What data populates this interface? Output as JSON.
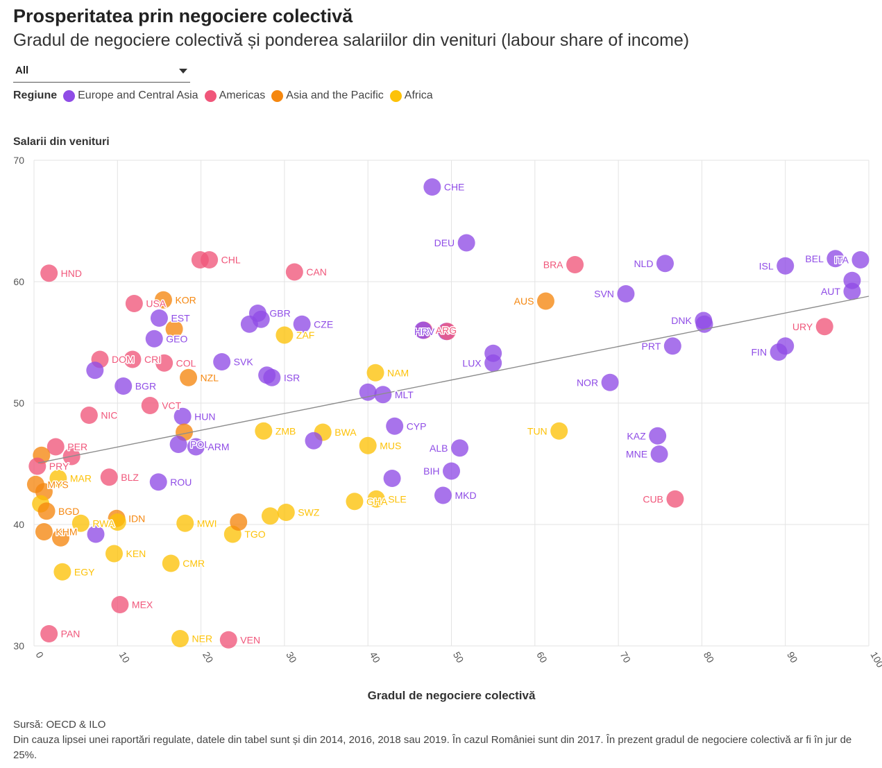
{
  "header": {
    "title": "Prosperitatea prin negociere colectivă",
    "subtitle": "Gradul de negociere colectivă și ponderea salariilor din venituri (labour share of income)"
  },
  "filter": {
    "selected": "All"
  },
  "legend": {
    "title": "Regiune",
    "items": [
      {
        "label": "Europe and Central Asia",
        "color": "#8f4ce6"
      },
      {
        "label": "Americas",
        "color": "#f0567a"
      },
      {
        "label": "Asia and the Pacific",
        "color": "#f5870f"
      },
      {
        "label": "Africa",
        "color": "#fdc208"
      }
    ]
  },
  "footer": {
    "source": "Sursă: OECD & ILO",
    "note": "Din cauza lipsei unei raportări regulate, datele din tabel sunt și din 2014, 2016, 2018 sau 2019. În cazul României sunt din 2017. În prezent gradul de negociere colectivă ar fi în jur de 25%."
  },
  "chart_data": {
    "type": "scatter",
    "title": "",
    "xlabel": "Gradul de negociere colectivă",
    "ylabel": "Salarii din venituri",
    "xlim": [
      0,
      100
    ],
    "ylim": [
      30,
      70
    ],
    "xticks": [
      0,
      10,
      20,
      30,
      40,
      50,
      60,
      70,
      80,
      90,
      100
    ],
    "yticks": [
      30,
      40,
      50,
      60,
      70
    ],
    "grid": true,
    "trendline": {
      "x": [
        0,
        100
      ],
      "y": [
        45,
        58.8
      ]
    },
    "regions": {
      "Europe and Central Asia": "#8f4ce6",
      "Americas": "#f0567a",
      "Asia and the Pacific": "#f5870f",
      "Africa": "#fdc208"
    },
    "points": [
      {
        "label": "CHE",
        "x": 47.7,
        "y": 67.8,
        "region": "Europe and Central Asia"
      },
      {
        "label": "DEU",
        "x": 51.8,
        "y": 63.2,
        "region": "Europe and Central Asia",
        "labelSide": "left"
      },
      {
        "label": "BRA",
        "x": 64.8,
        "y": 61.4,
        "region": "Americas",
        "labelSide": "left"
      },
      {
        "label": "NLD",
        "x": 75.6,
        "y": 61.5,
        "region": "Europe and Central Asia",
        "labelSide": "left"
      },
      {
        "label": "ISL",
        "x": 90.0,
        "y": 61.3,
        "region": "Europe and Central Asia",
        "labelSide": "left"
      },
      {
        "label": "BEL",
        "x": 96.0,
        "y": 61.9,
        "region": "Europe and Central Asia",
        "labelSide": "left"
      },
      {
        "label": "ITA",
        "x": 99.0,
        "y": 61.8,
        "region": "Europe and Central Asia",
        "labelSide": "left"
      },
      {
        "label": "",
        "x": 98.0,
        "y": 60.1,
        "region": "Europe and Central Asia"
      },
      {
        "label": "AUT",
        "x": 98.0,
        "y": 59.2,
        "region": "Europe and Central Asia",
        "labelSide": "left"
      },
      {
        "label": "AUS",
        "x": 61.3,
        "y": 58.4,
        "region": "Asia and the Pacific",
        "labelSide": "left"
      },
      {
        "label": "SVN",
        "x": 70.9,
        "y": 59.0,
        "region": "Europe and Central Asia",
        "labelSide": "left"
      },
      {
        "label": "DNK",
        "x": 80.2,
        "y": 56.8,
        "region": "Europe and Central Asia",
        "labelSide": "left"
      },
      {
        "label": "",
        "x": 80.3,
        "y": 56.5,
        "region": "Europe and Central Asia"
      },
      {
        "label": "URY",
        "x": 94.7,
        "y": 56.3,
        "region": "Americas",
        "labelSide": "left"
      },
      {
        "label": "PRT",
        "x": 76.5,
        "y": 54.7,
        "region": "Europe and Central Asia",
        "labelSide": "left"
      },
      {
        "label": "FIN",
        "x": 89.2,
        "y": 54.2,
        "region": "Europe and Central Asia",
        "labelSide": "left"
      },
      {
        "label": "",
        "x": 90.0,
        "y": 54.7,
        "region": "Europe and Central Asia"
      },
      {
        "label": "NOR",
        "x": 69.0,
        "y": 51.7,
        "region": "Europe and Central Asia",
        "labelSide": "left"
      },
      {
        "label": "KAZ",
        "x": 74.7,
        "y": 47.3,
        "region": "Europe and Central Asia",
        "labelSide": "left"
      },
      {
        "label": "MNE",
        "x": 74.9,
        "y": 45.8,
        "region": "Europe and Central Asia",
        "labelSide": "left"
      },
      {
        "label": "CUB",
        "x": 76.8,
        "y": 42.1,
        "region": "Americas",
        "labelSide": "left"
      },
      {
        "label": "TUN",
        "x": 62.9,
        "y": 47.7,
        "region": "Africa",
        "labelSide": "left"
      },
      {
        "label": "ARG",
        "x": 46.7,
        "y": 56.0,
        "region": "Americas"
      },
      {
        "label": "HRV",
        "x": 49.4,
        "y": 55.9,
        "region": "Europe and Central Asia",
        "labelSide": "left"
      },
      {
        "label": "",
        "x": 46.6,
        "y": 56.0,
        "region": "Europe and Central Asia"
      },
      {
        "label": "",
        "x": 49.5,
        "y": 55.9,
        "region": "Americas"
      },
      {
        "label": "LUX",
        "x": 55.0,
        "y": 53.3,
        "region": "Europe and Central Asia",
        "labelSide": "left"
      },
      {
        "label": "",
        "x": 55.0,
        "y": 54.1,
        "region": "Europe and Central Asia"
      },
      {
        "label": "NAM",
        "x": 40.9,
        "y": 52.5,
        "region": "Africa"
      },
      {
        "label": "",
        "x": 40.0,
        "y": 50.9,
        "region": "Europe and Central Asia"
      },
      {
        "label": "MLT",
        "x": 41.8,
        "y": 50.7,
        "region": "Europe and Central Asia"
      },
      {
        "label": "CYP",
        "x": 43.2,
        "y": 48.1,
        "region": "Europe and Central Asia"
      },
      {
        "label": "ALB",
        "x": 51.0,
        "y": 46.3,
        "region": "Europe and Central Asia",
        "labelSide": "left"
      },
      {
        "label": "BIH",
        "x": 50.0,
        "y": 44.4,
        "region": "Europe and Central Asia",
        "labelSide": "left"
      },
      {
        "label": "MKD",
        "x": 49.0,
        "y": 42.4,
        "region": "Europe and Central Asia"
      },
      {
        "label": "MUS",
        "x": 40.0,
        "y": 46.5,
        "region": "Africa"
      },
      {
        "label": "",
        "x": 42.9,
        "y": 43.8,
        "region": "Europe and Central Asia"
      },
      {
        "label": "GHA",
        "x": 38.4,
        "y": 41.9,
        "region": "Africa"
      },
      {
        "label": "SLE",
        "x": 41.0,
        "y": 42.1,
        "region": "Africa"
      },
      {
        "label": "CAN",
        "x": 31.2,
        "y": 60.8,
        "region": "Americas"
      },
      {
        "label": "CHL",
        "x": 21.0,
        "y": 61.8,
        "region": "Americas"
      },
      {
        "label": "",
        "x": 19.9,
        "y": 61.8,
        "region": "Americas"
      },
      {
        "label": "HND",
        "x": 1.8,
        "y": 60.7,
        "region": "Americas"
      },
      {
        "label": "USA",
        "x": 12.0,
        "y": 58.2,
        "region": "Americas"
      },
      {
        "label": "KOR",
        "x": 15.5,
        "y": 58.5,
        "region": "Asia and the Pacific"
      },
      {
        "label": "EST",
        "x": 15.0,
        "y": 57.0,
        "region": "Europe and Central Asia"
      },
      {
        "label": "",
        "x": 16.8,
        "y": 56.1,
        "region": "Asia and the Pacific"
      },
      {
        "label": "GEO",
        "x": 14.4,
        "y": 55.3,
        "region": "Europe and Central Asia"
      },
      {
        "label": "GBR",
        "x": 26.8,
        "y": 57.4,
        "region": "Europe and Central Asia"
      },
      {
        "label": "",
        "x": 25.8,
        "y": 56.5,
        "region": "Europe and Central Asia"
      },
      {
        "label": "",
        "x": 27.2,
        "y": 56.9,
        "region": "Europe and Central Asia"
      },
      {
        "label": "CZE",
        "x": 32.1,
        "y": 56.5,
        "region": "Europe and Central Asia"
      },
      {
        "label": "ZAF",
        "x": 30.0,
        "y": 55.6,
        "region": "Africa"
      },
      {
        "label": "SVK",
        "x": 22.5,
        "y": 53.4,
        "region": "Europe and Central Asia"
      },
      {
        "label": "ISR",
        "x": 28.5,
        "y": 52.1,
        "region": "Europe and Central Asia"
      },
      {
        "label": "",
        "x": 27.9,
        "y": 52.3,
        "region": "Europe and Central Asia"
      },
      {
        "label": "DOM",
        "x": 7.9,
        "y": 53.6,
        "region": "Americas"
      },
      {
        "label": "CRI",
        "x": 11.8,
        "y": 53.6,
        "region": "Americas"
      },
      {
        "label": "COL",
        "x": 15.6,
        "y": 53.3,
        "region": "Americas"
      },
      {
        "label": "",
        "x": 7.3,
        "y": 52.7,
        "region": "Europe and Central Asia"
      },
      {
        "label": "NZL",
        "x": 18.5,
        "y": 52.1,
        "region": "Asia and the Pacific"
      },
      {
        "label": "BGR",
        "x": 10.7,
        "y": 51.4,
        "region": "Europe and Central Asia"
      },
      {
        "label": "VCT",
        "x": 13.9,
        "y": 49.8,
        "region": "Americas"
      },
      {
        "label": "NIC",
        "x": 6.6,
        "y": 49.0,
        "region": "Americas"
      },
      {
        "label": "HUN",
        "x": 17.8,
        "y": 48.9,
        "region": "Europe and Central Asia"
      },
      {
        "label": "",
        "x": 18.0,
        "y": 47.6,
        "region": "Asia and the Pacific"
      },
      {
        "label": "POL",
        "x": 17.3,
        "y": 46.6,
        "region": "Europe and Central Asia"
      },
      {
        "label": "ARM",
        "x": 19.4,
        "y": 46.4,
        "region": "Europe and Central Asia"
      },
      {
        "label": "ZMB",
        "x": 27.5,
        "y": 47.7,
        "region": "Africa"
      },
      {
        "label": "BWA",
        "x": 34.6,
        "y": 47.6,
        "region": "Africa"
      },
      {
        "label": "",
        "x": 33.5,
        "y": 46.9,
        "region": "Europe and Central Asia"
      },
      {
        "label": "PER",
        "x": 2.6,
        "y": 46.4,
        "region": "Americas"
      },
      {
        "label": "",
        "x": 4.5,
        "y": 45.6,
        "region": "Americas"
      },
      {
        "label": "",
        "x": 0.9,
        "y": 45.7,
        "region": "Asia and the Pacific"
      },
      {
        "label": "PRY",
        "x": 0.4,
        "y": 44.8,
        "region": "Americas"
      },
      {
        "label": "MAR",
        "x": 2.9,
        "y": 43.8,
        "region": "Africa"
      },
      {
        "label": "MYS",
        "x": 0.2,
        "y": 43.3,
        "region": "Asia and the Pacific"
      },
      {
        "label": "",
        "x": 1.2,
        "y": 42.7,
        "region": "Asia and the Pacific"
      },
      {
        "label": "",
        "x": 0.8,
        "y": 41.7,
        "region": "Africa"
      },
      {
        "label": "BLZ",
        "x": 9.0,
        "y": 43.9,
        "region": "Americas"
      },
      {
        "label": "ROU",
        "x": 14.9,
        "y": 43.5,
        "region": "Europe and Central Asia"
      },
      {
        "label": "BGD",
        "x": 1.5,
        "y": 41.1,
        "region": "Asia and the Pacific"
      },
      {
        "label": "RWA",
        "x": 5.6,
        "y": 40.1,
        "region": "Africa"
      },
      {
        "label": "IDN",
        "x": 9.9,
        "y": 40.5,
        "region": "Asia and the Pacific"
      },
      {
        "label": "",
        "x": 10.0,
        "y": 40.2,
        "region": "Africa"
      },
      {
        "label": "MWI",
        "x": 18.1,
        "y": 40.1,
        "region": "Africa"
      },
      {
        "label": "KHM",
        "x": 1.2,
        "y": 39.4,
        "region": "Asia and the Pacific"
      },
      {
        "label": "",
        "x": 3.2,
        "y": 38.9,
        "region": "Asia and the Pacific"
      },
      {
        "label": "",
        "x": 7.4,
        "y": 39.2,
        "region": "Europe and Central Asia"
      },
      {
        "label": "TGO",
        "x": 23.8,
        "y": 39.2,
        "region": "Africa"
      },
      {
        "label": "",
        "x": 24.5,
        "y": 40.2,
        "region": "Asia and the Pacific"
      },
      {
        "label": "SWZ",
        "x": 30.2,
        "y": 41.0,
        "region": "Africa"
      },
      {
        "label": "",
        "x": 28.3,
        "y": 40.7,
        "region": "Africa"
      },
      {
        "label": "KEN",
        "x": 9.6,
        "y": 37.6,
        "region": "Africa"
      },
      {
        "label": "CMR",
        "x": 16.4,
        "y": 36.8,
        "region": "Africa"
      },
      {
        "label": "EGY",
        "x": 3.4,
        "y": 36.1,
        "region": "Africa"
      },
      {
        "label": "MEX",
        "x": 10.3,
        "y": 33.4,
        "region": "Americas"
      },
      {
        "label": "PAN",
        "x": 1.8,
        "y": 31.0,
        "region": "Americas"
      },
      {
        "label": "NER",
        "x": 17.5,
        "y": 30.6,
        "region": "Africa"
      },
      {
        "label": "VEN",
        "x": 23.3,
        "y": 30.5,
        "region": "Americas"
      }
    ]
  }
}
